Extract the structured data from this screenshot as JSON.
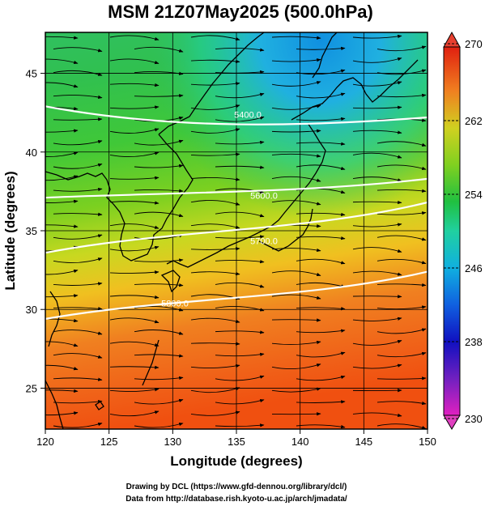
{
  "title": "MSM 21Z07May2025 (500.0hPa)",
  "x_axis": {
    "label": "Longitude (degrees)",
    "ticks": [
      "120",
      "125",
      "130",
      "135",
      "140",
      "145",
      "150"
    ],
    "range": [
      120,
      150
    ]
  },
  "y_axis": {
    "label": "Latitude  (degrees)",
    "ticks": [
      "25",
      "30",
      "35",
      "40",
      "45"
    ],
    "range": [
      22.4,
      47.6
    ]
  },
  "colorbar": {
    "ticks": [
      "270",
      "262",
      "254",
      "246",
      "238",
      "230"
    ],
    "range": [
      230,
      270
    ],
    "colors": [
      "#e020c0",
      "#6020c0",
      "#1010c0",
      "#1060e0",
      "#10b0e0",
      "#20d0a0",
      "#20c040",
      "#80d020",
      "#d0d020",
      "#f09020",
      "#f04010",
      "#e02010"
    ]
  },
  "contours": [
    {
      "label": "5400.0",
      "lat_at_west": 42.9,
      "lat_at_east": 42.2
    },
    {
      "label": "5600.0",
      "lat_at_west": 37.1,
      "lat_at_east": 38.3
    },
    {
      "label": "5700.0",
      "lat_at_west": 33.6,
      "lat_at_east": 36.8
    },
    {
      "label": "5800.0",
      "lat_at_west": 29.4,
      "lat_at_east": 32.4
    }
  ],
  "field": "temperature (K) with wind streamlines",
  "credits": {
    "line1": "Drawing by DCL (https://www.gfd-dennou.org/library/dcl/)",
    "line2": "Data from http://database.rish.kyoto-u.ac.jp/arch/jmadata/"
  },
  "colors": {
    "contour": "#ffffff",
    "streamline": "#000000",
    "coast": "#000000"
  }
}
